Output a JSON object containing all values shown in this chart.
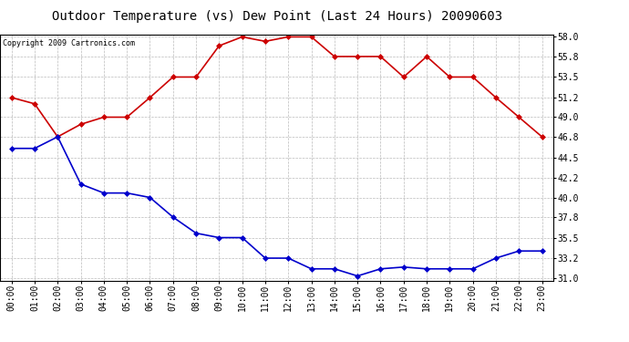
{
  "title": "Outdoor Temperature (vs) Dew Point (Last 24 Hours) 20090603",
  "copyright": "Copyright 2009 Cartronics.com",
  "hours": [
    "00:00",
    "01:00",
    "02:00",
    "03:00",
    "04:00",
    "05:00",
    "06:00",
    "07:00",
    "08:00",
    "09:00",
    "10:00",
    "11:00",
    "12:00",
    "13:00",
    "14:00",
    "15:00",
    "16:00",
    "17:00",
    "18:00",
    "19:00",
    "20:00",
    "21:00",
    "22:00",
    "23:00"
  ],
  "temp": [
    51.2,
    50.5,
    46.8,
    48.2,
    49.0,
    49.0,
    51.2,
    53.5,
    53.5,
    57.0,
    58.0,
    57.5,
    58.0,
    58.0,
    55.8,
    55.8,
    55.8,
    53.5,
    55.8,
    53.5,
    53.5,
    51.2,
    49.0,
    46.8
  ],
  "dew": [
    45.5,
    45.5,
    46.8,
    41.5,
    40.5,
    40.5,
    40.0,
    37.8,
    36.0,
    35.5,
    35.5,
    33.2,
    33.2,
    32.0,
    32.0,
    31.2,
    32.0,
    32.2,
    32.0,
    32.0,
    32.0,
    33.2,
    34.0,
    34.0
  ],
  "ylim": [
    31.0,
    58.0
  ],
  "yticks": [
    31.0,
    33.2,
    35.5,
    37.8,
    40.0,
    42.2,
    44.5,
    46.8,
    49.0,
    51.2,
    53.5,
    55.8,
    58.0
  ],
  "temp_color": "#cc0000",
  "dew_color": "#0000cc",
  "bg_color": "#ffffff",
  "plot_bg": "#ffffff",
  "grid_color": "#bbbbbb",
  "title_fontsize": 10,
  "copyright_fontsize": 6,
  "tick_fontsize": 7,
  "marker": "D",
  "marker_size": 3,
  "linewidth": 1.2
}
